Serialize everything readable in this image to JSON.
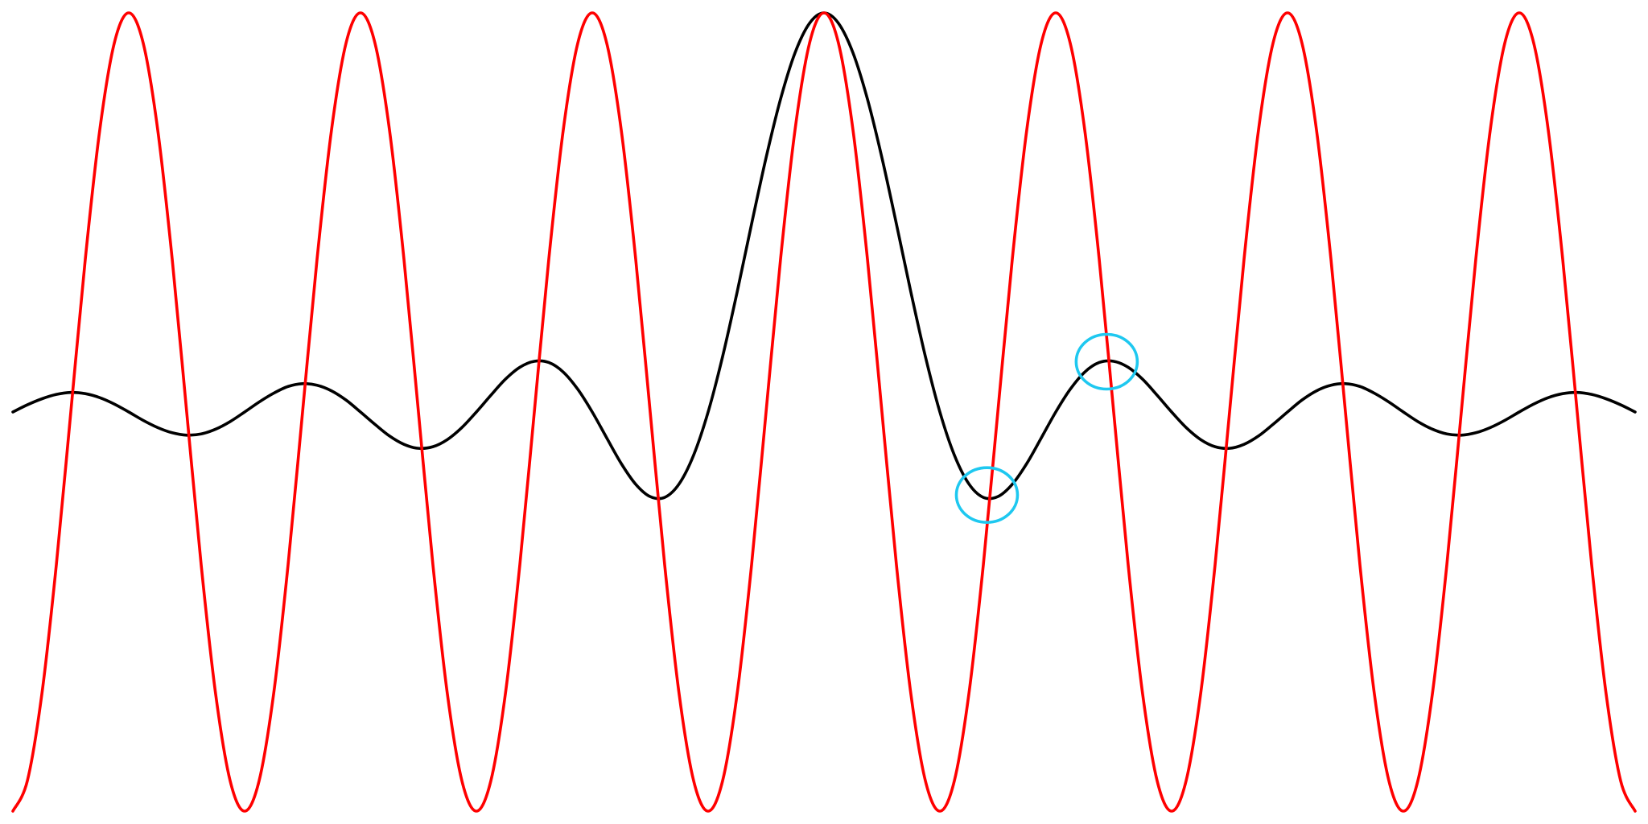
{
  "chart_data": {
    "type": "line",
    "xlim": [
      -7,
      7
    ],
    "ylim": [
      -1,
      1
    ],
    "grid": false,
    "smooth": true,
    "x": [
      -7,
      -6.875,
      -6.75,
      -6.625,
      -6.5,
      -6.375,
      -6.25,
      -6.125,
      -6,
      -5.875,
      -5.75,
      -5.625,
      -5.5,
      -5.375,
      -5.25,
      -5.125,
      -5,
      -4.875,
      -4.75,
      -4.625,
      -4.5,
      -4.375,
      -4.25,
      -4.125,
      -4,
      -3.875,
      -3.75,
      -3.625,
      -3.5,
      -3.375,
      -3.25,
      -3.125,
      -3,
      -2.875,
      -2.75,
      -2.625,
      -2.5,
      -2.375,
      -2.25,
      -2.125,
      -2,
      -1.875,
      -1.75,
      -1.625,
      -1.5,
      -1.375,
      -1.25,
      -1.125,
      -1,
      -0.875,
      -0.75,
      -0.625,
      -0.5,
      -0.375,
      -0.25,
      -0.125,
      0,
      0.125,
      0.25,
      0.375,
      0.5,
      0.625,
      0.75,
      0.875,
      1,
      1.125,
      1.25,
      1.375,
      1.5,
      1.625,
      1.75,
      1.875,
      2,
      2.125,
      2.25,
      2.375,
      2.5,
      2.625,
      2.75,
      2.875,
      3,
      3.125,
      3.25,
      3.375,
      3.5,
      3.625,
      3.75,
      3.875,
      4,
      4.125,
      4.25,
      4.375,
      4.5,
      4.625,
      4.75,
      4.875,
      5,
      5.125,
      5.25,
      5.375,
      5.5,
      5.625,
      5.75,
      5.875,
      6,
      6.125,
      6.25,
      6.375,
      6.5,
      6.625,
      6.75,
      6.875,
      7
    ],
    "series": [
      {
        "color": "#ff0000",
        "values": [
          -1,
          -0.924,
          -0.707,
          -0.383,
          0,
          0.383,
          0.707,
          0.924,
          1,
          0.924,
          0.707,
          0.383,
          0,
          -0.383,
          -0.707,
          -0.924,
          -1,
          -0.924,
          -0.707,
          -0.383,
          0,
          0.383,
          0.707,
          0.924,
          1,
          0.924,
          0.707,
          0.383,
          0,
          -0.383,
          -0.707,
          -0.924,
          -1,
          -0.924,
          -0.707,
          -0.383,
          0,
          0.383,
          0.707,
          0.924,
          1,
          0.924,
          0.707,
          0.383,
          0,
          -0.383,
          -0.707,
          -0.924,
          -1,
          -0.924,
          -0.707,
          -0.383,
          0,
          0.383,
          0.707,
          0.924,
          1,
          0.924,
          0.707,
          0.383,
          0,
          -0.383,
          -0.707,
          -0.924,
          -1,
          -0.924,
          -0.707,
          -0.383,
          0,
          0.383,
          0.707,
          0.924,
          1,
          0.924,
          0.707,
          0.383,
          0,
          -0.383,
          -0.707,
          -0.924,
          -1,
          -0.924,
          -0.707,
          -0.383,
          0,
          0.383,
          0.707,
          0.924,
          1,
          0.924,
          0.707,
          0.383,
          0,
          -0.383,
          -0.707,
          -0.924,
          -1,
          -0.924,
          -0.707,
          -0.383,
          0,
          0.383,
          0.707,
          0.924,
          1,
          0.924,
          0.707,
          0.383,
          0,
          -0.383,
          -0.707,
          -0.924,
          -1
        ]
      },
      {
        "color": "#000000",
        "values": [
          0,
          0.018,
          0.033,
          0.044,
          0.049,
          0.046,
          0.036,
          0.02,
          0,
          -0.021,
          -0.039,
          -0.052,
          -0.058,
          -0.055,
          -0.043,
          -0.024,
          0,
          0.025,
          0.047,
          0.064,
          0.071,
          0.067,
          0.053,
          0.03,
          0,
          -0.031,
          -0.06,
          -0.081,
          -0.091,
          -0.087,
          -0.069,
          -0.039,
          0,
          0.042,
          0.082,
          0.112,
          0.127,
          0.124,
          0.1,
          0.057,
          0,
          -0.065,
          -0.129,
          -0.181,
          -0.212,
          -0.214,
          -0.18,
          -0.108,
          0,
          0.139,
          0.3,
          0.471,
          0.637,
          0.784,
          0.9,
          0.974,
          1,
          0.974,
          0.9,
          0.784,
          0.637,
          0.471,
          0.3,
          0.139,
          0,
          -0.108,
          -0.18,
          -0.214,
          -0.212,
          -0.181,
          -0.129,
          -0.065,
          0,
          0.057,
          0.1,
          0.124,
          0.127,
          0.112,
          0.082,
          0.042,
          0,
          -0.039,
          -0.069,
          -0.087,
          -0.091,
          -0.081,
          -0.06,
          -0.031,
          0,
          0.03,
          0.053,
          0.067,
          0.071,
          0.064,
          0.047,
          0.025,
          0,
          -0.024,
          -0.043,
          -0.055,
          -0.058,
          -0.052,
          -0.039,
          -0.021,
          0,
          0.02,
          0.036,
          0.046,
          0.049,
          0.044,
          0.033,
          0.018,
          0
        ]
      }
    ],
    "markers": {
      "color": "#1ec8f0",
      "x": [
        1.406,
        2.44
      ],
      "values": [
        -0.208,
        0.126
      ]
    }
  }
}
